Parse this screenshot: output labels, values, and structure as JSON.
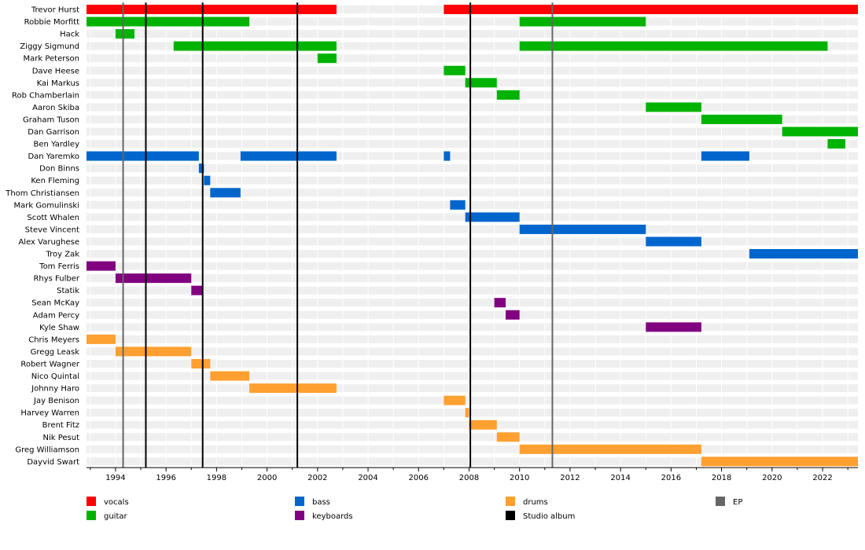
{
  "chart_data": {
    "type": "timeline",
    "title": "",
    "xlabel": "",
    "ylabel": "",
    "xlim": [
      1992.85,
      2023.4
    ],
    "x_ticks": [
      1994,
      1996,
      1998,
      2000,
      2002,
      2004,
      2006,
      2008,
      2010,
      2012,
      2014,
      2016,
      2018,
      2020,
      2022
    ],
    "grid": true,
    "legend_position": "bottom",
    "roles": [
      {
        "key": "vocals",
        "label": "vocals",
        "color": "#ff0000"
      },
      {
        "key": "guitar",
        "label": "guitar",
        "color": "#00b300"
      },
      {
        "key": "bass",
        "label": "bass",
        "color": "#0066cc"
      },
      {
        "key": "keyboards",
        "label": "keyboards",
        "color": "#800080"
      },
      {
        "key": "drums",
        "label": "drums",
        "color": "#ffa030"
      }
    ],
    "markers": [
      {
        "key": "ep",
        "label": "EP",
        "color": "#666666"
      },
      {
        "key": "studio",
        "label": "Studio album",
        "color": "#000000"
      }
    ],
    "events": [
      {
        "type": "ep",
        "x": 1994.3
      },
      {
        "type": "studio",
        "x": 1995.2
      },
      {
        "type": "studio",
        "x": 1997.45
      },
      {
        "type": "studio",
        "x": 2001.2
      },
      {
        "type": "studio",
        "x": 2008.05
      },
      {
        "type": "ep",
        "x": 2011.3
      }
    ],
    "members": [
      {
        "name": "Trevor Hurst",
        "role": "vocals",
        "spans": [
          [
            1992.85,
            2002.75
          ],
          [
            2007.0,
            2023.4
          ]
        ]
      },
      {
        "name": "Robbie Morfitt",
        "role": "guitar",
        "spans": [
          [
            1992.85,
            1999.3
          ],
          [
            2010.0,
            2015.0
          ]
        ]
      },
      {
        "name": "Hack",
        "role": "guitar",
        "spans": [
          [
            1994.0,
            1994.75
          ]
        ]
      },
      {
        "name": "Ziggy Sigmund",
        "role": "guitar",
        "spans": [
          [
            1996.3,
            2002.75
          ],
          [
            2010.0,
            2022.2
          ]
        ]
      },
      {
        "name": "Mark Peterson",
        "role": "guitar",
        "spans": [
          [
            2002.0,
            2002.75
          ]
        ]
      },
      {
        "name": "Dave Heese",
        "role": "guitar",
        "spans": [
          [
            2007.0,
            2007.85
          ]
        ]
      },
      {
        "name": "Kai Markus",
        "role": "guitar",
        "spans": [
          [
            2007.85,
            2009.1
          ]
        ]
      },
      {
        "name": "Rob Chamberlain",
        "role": "guitar",
        "spans": [
          [
            2009.1,
            2010.0
          ]
        ]
      },
      {
        "name": "Aaron Skiba",
        "role": "guitar",
        "spans": [
          [
            2015.0,
            2017.2
          ]
        ]
      },
      {
        "name": "Graham Tuson",
        "role": "guitar",
        "spans": [
          [
            2017.2,
            2020.4
          ]
        ]
      },
      {
        "name": "Dan Garrison",
        "role": "guitar",
        "spans": [
          [
            2020.4,
            2023.4
          ]
        ]
      },
      {
        "name": "Ben Yardley",
        "role": "guitar",
        "spans": [
          [
            2022.2,
            2022.9
          ]
        ]
      },
      {
        "name": "Dan Yaremko",
        "role": "bass",
        "spans": [
          [
            1992.85,
            1997.3
          ],
          [
            1998.95,
            2002.75
          ],
          [
            2007.0,
            2007.25
          ],
          [
            2017.2,
            2019.1
          ]
        ]
      },
      {
        "name": "Don Binns",
        "role": "bass",
        "spans": [
          [
            1997.3,
            1997.5
          ]
        ]
      },
      {
        "name": "Ken Fleming",
        "role": "bass",
        "spans": [
          [
            1997.5,
            1997.75
          ]
        ]
      },
      {
        "name": "Thom Christiansen",
        "role": "bass",
        "spans": [
          [
            1997.75,
            1998.95
          ]
        ]
      },
      {
        "name": "Mark Gomulinski",
        "role": "bass",
        "spans": [
          [
            2007.25,
            2007.85
          ]
        ]
      },
      {
        "name": "Scott Whalen",
        "role": "bass",
        "spans": [
          [
            2007.85,
            2010.0
          ]
        ]
      },
      {
        "name": "Steve Vincent",
        "role": "bass",
        "spans": [
          [
            2010.0,
            2015.0
          ]
        ]
      },
      {
        "name": "Alex Varughese",
        "role": "bass",
        "spans": [
          [
            2015.0,
            2017.2
          ]
        ]
      },
      {
        "name": "Troy Zak",
        "role": "bass",
        "spans": [
          [
            2019.1,
            2023.4
          ]
        ]
      },
      {
        "name": "Tom Ferris",
        "role": "keyboards",
        "spans": [
          [
            1992.85,
            1994.0
          ]
        ]
      },
      {
        "name": "Rhys Fulber",
        "role": "keyboards",
        "spans": [
          [
            1994.0,
            1997.0
          ]
        ]
      },
      {
        "name": "Statik",
        "role": "keyboards",
        "spans": [
          [
            1997.0,
            1997.45
          ]
        ]
      },
      {
        "name": "Sean McKay",
        "role": "keyboards",
        "spans": [
          [
            2009.0,
            2009.45
          ]
        ]
      },
      {
        "name": "Adam Percy",
        "role": "keyboards",
        "spans": [
          [
            2009.45,
            2010.0
          ]
        ]
      },
      {
        "name": "Kyle Shaw",
        "role": "keyboards",
        "spans": [
          [
            2015.0,
            2017.2
          ]
        ]
      },
      {
        "name": "Chris Meyers",
        "role": "drums",
        "spans": [
          [
            1992.85,
            1994.0
          ]
        ]
      },
      {
        "name": "Gregg Leask",
        "role": "drums",
        "spans": [
          [
            1994.0,
            1997.0
          ]
        ]
      },
      {
        "name": "Robert Wagner",
        "role": "drums",
        "spans": [
          [
            1997.0,
            1997.75
          ]
        ]
      },
      {
        "name": "Nico Quintal",
        "role": "drums",
        "spans": [
          [
            1997.75,
            1999.3
          ]
        ]
      },
      {
        "name": "Johnny Haro",
        "role": "drums",
        "spans": [
          [
            1999.3,
            2002.75
          ]
        ]
      },
      {
        "name": "Jay Benison",
        "role": "drums",
        "spans": [
          [
            2007.0,
            2007.85
          ]
        ]
      },
      {
        "name": "Harvey Warren",
        "role": "drums",
        "spans": [
          [
            2007.85,
            2008.0
          ]
        ]
      },
      {
        "name": "Brent Fitz",
        "role": "drums",
        "spans": [
          [
            2008.0,
            2009.1
          ]
        ]
      },
      {
        "name": "Nik Pesut",
        "role": "drums",
        "spans": [
          [
            2009.1,
            2010.0
          ]
        ]
      },
      {
        "name": "Greg Williamson",
        "role": "drums",
        "spans": [
          [
            2010.0,
            2017.2
          ]
        ]
      },
      {
        "name": "Dayvid Swart",
        "role": "drums",
        "spans": [
          [
            2017.2,
            2023.4
          ]
        ]
      }
    ]
  }
}
